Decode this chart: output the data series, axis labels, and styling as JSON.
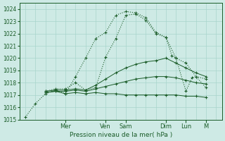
{
  "title": "",
  "xlabel": "Pression niveau de la mer( hPa )",
  "ylabel": "",
  "background_color": "#ceeae5",
  "grid_color": "#a8d5cc",
  "line_color": "#1a5c28",
  "ylim": [
    1015,
    1024.5
  ],
  "yticks": [
    1015,
    1016,
    1017,
    1018,
    1019,
    1020,
    1021,
    1022,
    1023,
    1024
  ],
  "xlim": [
    -0.3,
    9.8
  ],
  "x_day_labels": [
    "Mer",
    "Ven",
    "Sam",
    "Dim",
    "Lun",
    "M"
  ],
  "x_day_positions": [
    2,
    4,
    5,
    7,
    8,
    9
  ],
  "series": [
    {
      "x": [
        0.0,
        0.5,
        1.0,
        1.5,
        2.0,
        2.5,
        3.0,
        3.5,
        4.0,
        4.5,
        5.0,
        5.5,
        6.0,
        6.5,
        7.0,
        7.5,
        8.0,
        8.5,
        9.0
      ],
      "y": [
        1015.2,
        1016.3,
        1017.1,
        1017.4,
        1017.1,
        1018.5,
        1020.0,
        1021.6,
        1022.1,
        1023.5,
        1023.8,
        1023.7,
        1023.3,
        1022.1,
        1021.7,
        1020.0,
        1019.6,
        1018.5,
        1018.3
      ],
      "style": "dotted",
      "marker": "+",
      "markersize": 3.5,
      "linewidth": 0.8
    },
    {
      "x": [
        1.0,
        1.5,
        2.0,
        2.5,
        3.0,
        3.5,
        4.0,
        4.5,
        5.0,
        5.5,
        6.0,
        6.5,
        7.0,
        7.5,
        8.0,
        8.5,
        9.0
      ],
      "y": [
        1017.2,
        1017.3,
        1017.1,
        1017.2,
        1017.1,
        1017.2,
        1017.1,
        1017.1,
        1017.0,
        1017.0,
        1017.0,
        1017.0,
        1017.0,
        1017.0,
        1016.9,
        1016.9,
        1016.8
      ],
      "style": "-",
      "marker": "+",
      "markersize": 3.0,
      "linewidth": 0.7
    },
    {
      "x": [
        1.0,
        1.5,
        2.0,
        2.5,
        3.0,
        3.5,
        4.0,
        4.5,
        5.0,
        5.5,
        6.0,
        6.5,
        7.0,
        7.5,
        8.0,
        8.5,
        9.0
      ],
      "y": [
        1017.2,
        1017.3,
        1017.3,
        1017.4,
        1017.3,
        1017.5,
        1017.7,
        1017.9,
        1018.1,
        1018.3,
        1018.4,
        1018.5,
        1018.5,
        1018.4,
        1018.2,
        1018.0,
        1017.9
      ],
      "style": "-",
      "marker": "+",
      "markersize": 3.0,
      "linewidth": 0.7
    },
    {
      "x": [
        1.0,
        1.5,
        2.0,
        2.5,
        3.0,
        3.5,
        4.0,
        4.5,
        5.0,
        5.5,
        6.0,
        6.5,
        7.0,
        7.5,
        8.0,
        8.5,
        9.0
      ],
      "y": [
        1017.3,
        1017.4,
        1017.4,
        1017.5,
        1017.4,
        1017.8,
        1018.3,
        1018.8,
        1019.2,
        1019.5,
        1019.7,
        1019.8,
        1020.0,
        1019.6,
        1019.2,
        1018.8,
        1018.5
      ],
      "style": "-",
      "marker": "+",
      "markersize": 3.0,
      "linewidth": 0.7
    },
    {
      "x": [
        1.0,
        1.5,
        2.0,
        2.5,
        3.0,
        3.5,
        4.0,
        4.5,
        5.0,
        5.5,
        6.0,
        6.5,
        7.0,
        7.3,
        7.5,
        8.0,
        8.3,
        8.5,
        9.0
      ],
      "y": [
        1017.3,
        1017.5,
        1017.5,
        1018.0,
        1017.4,
        1017.6,
        1020.1,
        1021.6,
        1023.5,
        1023.6,
        1023.1,
        1022.0,
        1021.7,
        1020.2,
        1020.0,
        1017.3,
        1018.4,
        1018.5,
        1017.6
      ],
      "style": "dotted",
      "marker": "+",
      "markersize": 3.5,
      "linewidth": 0.8
    }
  ]
}
